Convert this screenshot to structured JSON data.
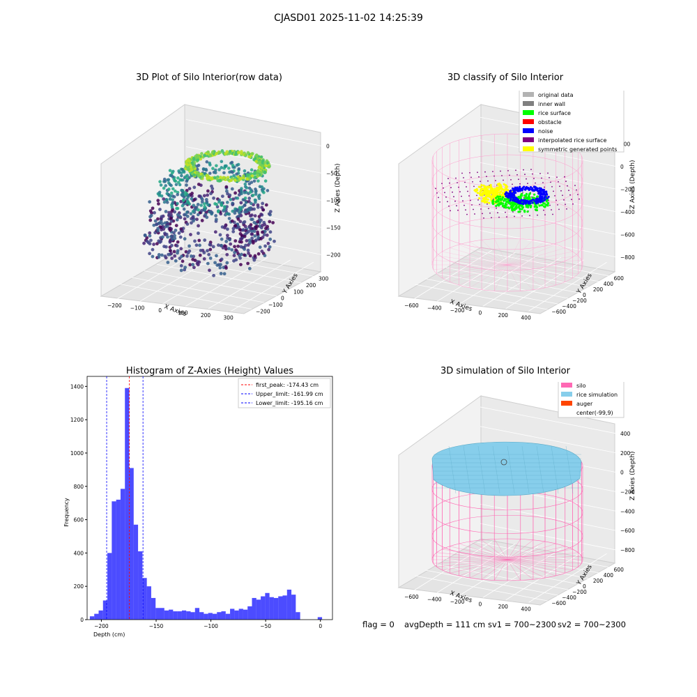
{
  "figure": {
    "title": "CJASD01 2025-11-02 14:25:39"
  },
  "panels": {
    "raw": {
      "title": "3D Plot of Silo Interior(row data)",
      "xlabel": "X Axies",
      "ylabel": "Y Axies",
      "zlabel": "Z Axies (Depth)",
      "xticks": [
        "−200",
        "−100",
        "0",
        "100",
        "200",
        "300"
      ],
      "yticks": [
        "−200",
        "−100",
        "0",
        "100",
        "200",
        "300"
      ],
      "zticks": [
        "0",
        "−50",
        "−100",
        "−150",
        "−200"
      ]
    },
    "classify": {
      "title": "3D classify of Silo Interior",
      "xlabel": "X Axies",
      "ylabel": "Y Axies",
      "zlabel": "Z Axies (Depth)",
      "xticks": [
        "−600",
        "−400",
        "−200",
        "0",
        "200",
        "400"
      ],
      "yticks": [
        "−600",
        "−400",
        "−200",
        "0",
        "200",
        "400",
        "600"
      ],
      "zticks": [
        "200",
        "0",
        "−200",
        "−400",
        "−600",
        "−800"
      ],
      "legend": [
        {
          "label": "original data",
          "color": "#b3b3b3"
        },
        {
          "label": "inner wall",
          "color": "#808080"
        },
        {
          "label": "rice surface",
          "color": "#00ff00"
        },
        {
          "label": "obstacle",
          "color": "#ff0000"
        },
        {
          "label": "noise",
          "color": "#0000ff"
        },
        {
          "label": "interpolated rice surface",
          "color": "#800080"
        },
        {
          "label": "symmetric generated points",
          "color": "#ffff00"
        }
      ]
    },
    "simulation": {
      "title": "3D simulation of Silo Interior",
      "xlabel": "X Axies",
      "ylabel": "Y Axies",
      "zlabel": "Z Axies (Depth)",
      "xticks": [
        "−600",
        "−400",
        "−200",
        "0",
        "200",
        "400"
      ],
      "yticks": [
        "−600",
        "−400",
        "−200",
        "0",
        "200",
        "400",
        "600"
      ],
      "zticks": [
        "400",
        "200",
        "0",
        "−200",
        "−400",
        "−600",
        "−800"
      ],
      "legend": [
        {
          "label": "silo",
          "color": "#ff69b4"
        },
        {
          "label": "rice simulation",
          "color": "#87ceeb"
        },
        {
          "label": "auger",
          "color": "#ff4500"
        },
        {
          "label": "center(-99,9)",
          "color": "#ffffff"
        }
      ]
    }
  },
  "status": {
    "flag": "flag = 0",
    "avg_depth": "avgDepth = 111 cm",
    "sv1": "sv1 = 700~2300",
    "sv2": "sv2 = 700~2300"
  },
  "chart_data": {
    "type": "bar",
    "title": "Histogram of Z-Axies (Height) Values",
    "xlabel": "Depth (cm)",
    "ylabel": "Frequency",
    "xlim": [
      -213,
      11
    ],
    "ylim": [
      0,
      1460
    ],
    "bar_color": "#0000ff",
    "bins": [
      [
        -208.5,
        20
      ],
      [
        -204.5,
        35
      ],
      [
        -200.5,
        55
      ],
      [
        -196.5,
        115
      ],
      [
        -192.5,
        400
      ],
      [
        -188.5,
        710
      ],
      [
        -184.5,
        720
      ],
      [
        -180.5,
        785
      ],
      [
        -176.5,
        1390
      ],
      [
        -172.5,
        910
      ],
      [
        -168.5,
        570
      ],
      [
        -164.5,
        410
      ],
      [
        -160.5,
        250
      ],
      [
        -156.5,
        200
      ],
      [
        -152.5,
        130
      ],
      [
        -148.5,
        70
      ],
      [
        -144.5,
        70
      ],
      [
        -140.5,
        55
      ],
      [
        -136.5,
        60
      ],
      [
        -132.5,
        50
      ],
      [
        -128.5,
        50
      ],
      [
        -124.5,
        55
      ],
      [
        -120.5,
        50
      ],
      [
        -116.5,
        45
      ],
      [
        -112.5,
        70
      ],
      [
        -108.5,
        45
      ],
      [
        -104.5,
        35
      ],
      [
        -100.5,
        40
      ],
      [
        -96.5,
        35
      ],
      [
        -92.5,
        45
      ],
      [
        -88.5,
        50
      ],
      [
        -84.5,
        35
      ],
      [
        -80.5,
        65
      ],
      [
        -76.5,
        55
      ],
      [
        -72.5,
        65
      ],
      [
        -68.5,
        60
      ],
      [
        -64.5,
        80
      ],
      [
        -60.5,
        130
      ],
      [
        -56.5,
        120
      ],
      [
        -52.5,
        140
      ],
      [
        -48.5,
        160
      ],
      [
        -44.5,
        135
      ],
      [
        -40.5,
        130
      ],
      [
        -36.5,
        140
      ],
      [
        -32.5,
        145
      ],
      [
        -28.5,
        180
      ],
      [
        -24.5,
        150
      ],
      [
        -20.5,
        45
      ],
      [
        -16.5,
        0
      ],
      [
        -12.5,
        0
      ],
      [
        -8.5,
        0
      ],
      [
        -4.5,
        0
      ],
      [
        -0.5,
        15
      ]
    ],
    "xticks": [
      -200,
      -150,
      -100,
      -50,
      0
    ],
    "yticks": [
      0,
      200,
      400,
      600,
      800,
      1000,
      1200,
      1400
    ],
    "lines": [
      {
        "label": "first_peak: -174.43 cm",
        "x": -174.43,
        "color": "#ff0000"
      },
      {
        "label": "Upper_limit: -161.99 cm",
        "x": -161.99,
        "color": "#0000ff"
      },
      {
        "label": "Lower_limit: -195.16 cm",
        "x": -195.16,
        "color": "#0000ff"
      }
    ],
    "legend_position": "top-right"
  }
}
